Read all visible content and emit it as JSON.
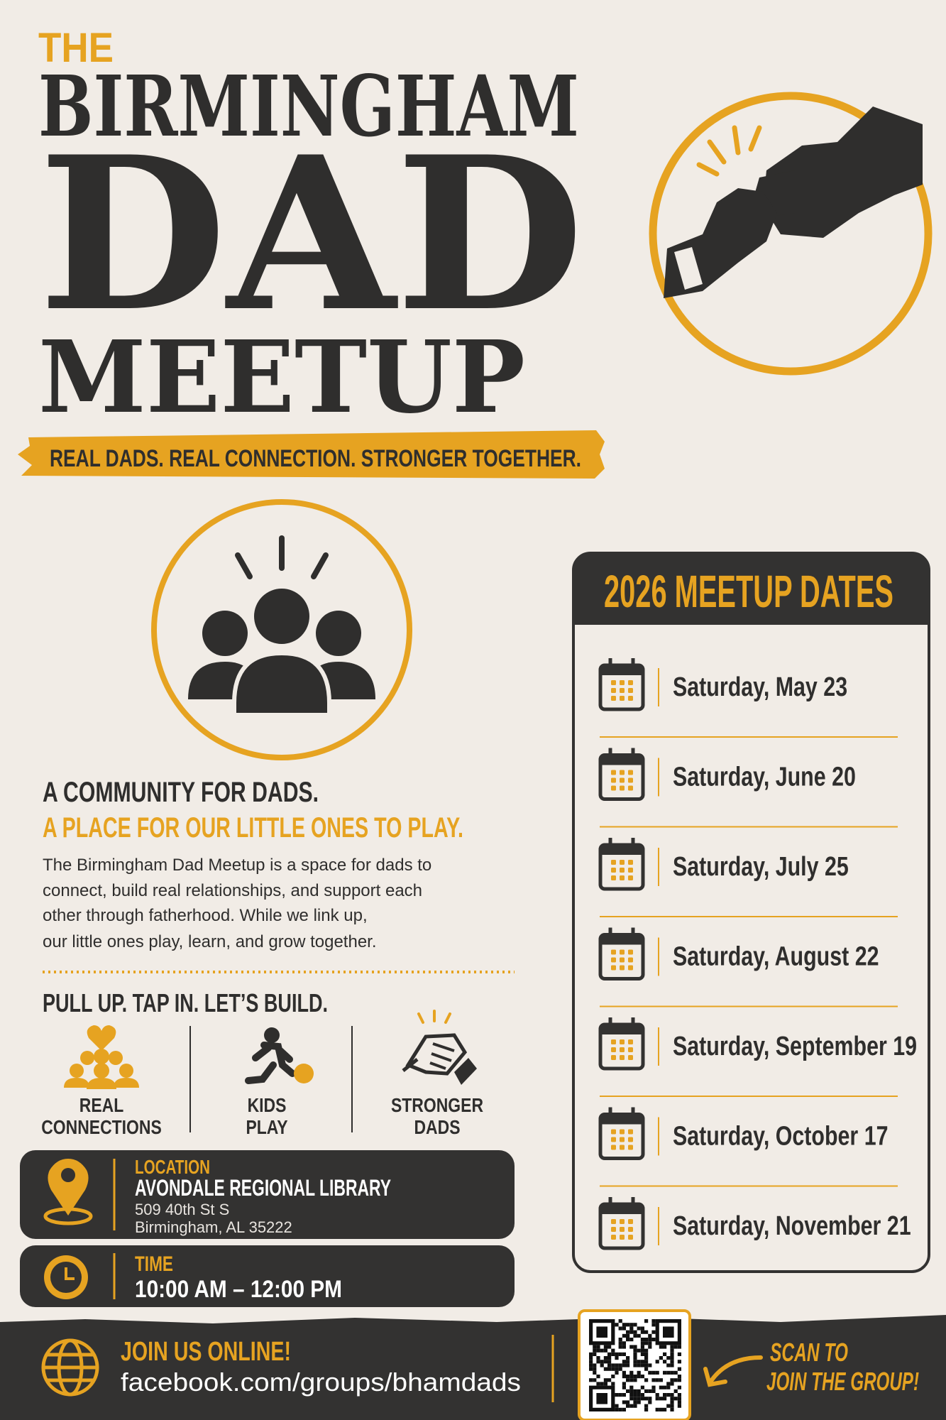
{
  "header": {
    "the": "THE",
    "line1": "BIRMINGHAM",
    "line2": "DAD",
    "line3": "MEETUP",
    "tagline": "REAL DADS. REAL CONNECTION. STRONGER TOGETHER."
  },
  "about": {
    "heading": "A COMMUNITY FOR DADS.",
    "subheading": "A PLACE FOR OUR LITTLE ONES TO PLAY.",
    "body": [
      "The Birmingham Dad Meetup is a space for dads to",
      "connect, build real relationships, and support each",
      "other through fatherhood. While we link up,",
      "our little ones play, learn, and grow together."
    ]
  },
  "features": {
    "heading": "PULL UP. TAP IN. LET’S BUILD.",
    "items": [
      {
        "label": [
          "REAL",
          "CONNECTIONS"
        ]
      },
      {
        "label": [
          "KIDS",
          "PLAY"
        ]
      },
      {
        "label": [
          "STRONGER",
          "DADS"
        ]
      }
    ]
  },
  "location": {
    "label": "LOCATION",
    "name": "AVONDALE REGIONAL LIBRARY",
    "address": [
      "509 40th St S",
      "Birmingham, AL 35222"
    ]
  },
  "time": {
    "label": "TIME",
    "value": "10:00 AM – 12:00 PM"
  },
  "dates": {
    "title": "2026 MEETUP DATES",
    "items": [
      "Saturday, May 23",
      "Saturday, June 20",
      "Saturday, July 25",
      "Saturday, August 22",
      "Saturday, September 19",
      "Saturday, October 17",
      "Saturday, November 21"
    ]
  },
  "footer": {
    "heading": "JOIN US ONLINE!",
    "url": "facebook.com/groups/bhamdads",
    "cta": [
      "SCAN TO",
      "JOIN THE GROUP!"
    ]
  }
}
